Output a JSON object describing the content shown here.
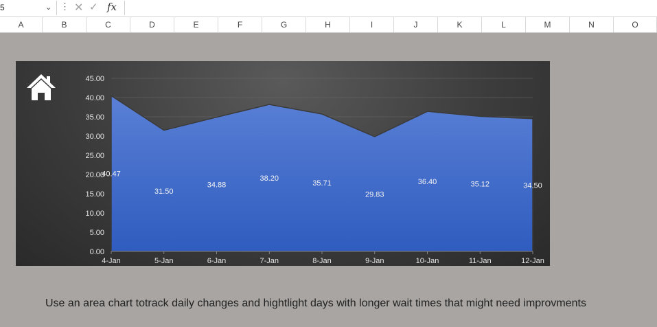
{
  "formula_bar": {
    "name_box": "5",
    "fx_label": "fx",
    "formula": ""
  },
  "columns": [
    "A",
    "B",
    "C",
    "D",
    "E",
    "F",
    "G",
    "H",
    "I",
    "J",
    "K",
    "L",
    "M",
    "N",
    "O"
  ],
  "chart_data": {
    "type": "area",
    "categories": [
      "4-Jan",
      "5-Jan",
      "6-Jan",
      "7-Jan",
      "8-Jan",
      "9-Jan",
      "10-Jan",
      "11-Jan",
      "12-Jan"
    ],
    "values": [
      40.47,
      31.5,
      34.88,
      38.2,
      35.71,
      29.83,
      36.4,
      35.12,
      34.5
    ],
    "data_labels": [
      "40.47",
      "31.50",
      "34.88",
      "38.20",
      "35.71",
      "29.83",
      "36.40",
      "35.12",
      "34.50"
    ],
    "y_ticks": [
      "0.00",
      "5.00",
      "10.00",
      "15.00",
      "20.00",
      "25.00",
      "30.00",
      "35.00",
      "40.00",
      "45.00"
    ],
    "ylim": [
      0,
      45
    ],
    "grid": true,
    "legend": "none",
    "title": "",
    "xlabel": "",
    "ylabel": "",
    "colors": {
      "fill_top": "#5a80d6",
      "fill_bottom": "#2f5cbf",
      "outline": "#3a3a3a",
      "background": "#3c3c3c"
    }
  },
  "icons": {
    "home": "home-icon"
  },
  "caption": "Use an area chart totrack daily changes and hightlight days with longer wait times that might need improvments"
}
